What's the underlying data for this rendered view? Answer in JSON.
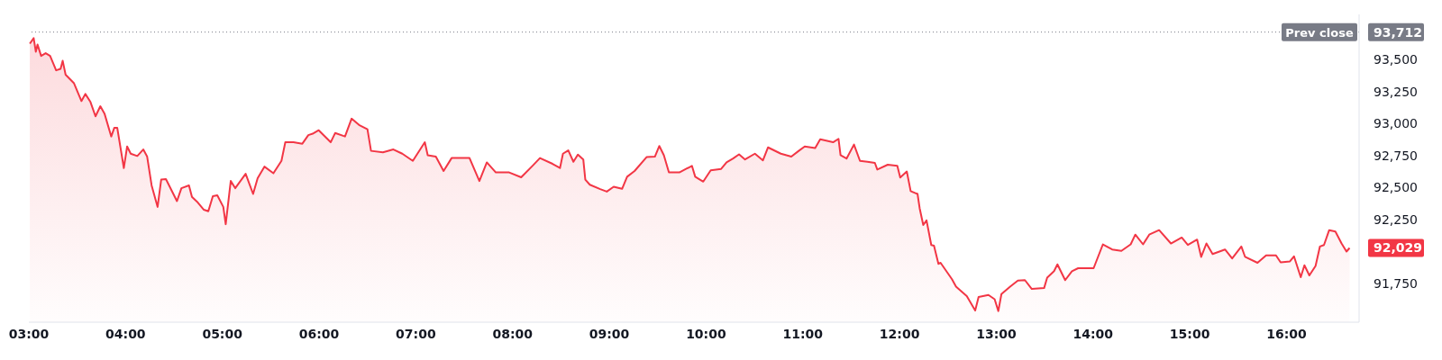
{
  "chart_data": {
    "type": "area",
    "x": [
      3.01,
      3.05,
      3.072,
      3.09,
      3.127,
      3.174,
      3.22,
      3.282,
      3.328,
      3.35,
      3.38,
      3.467,
      3.544,
      3.584,
      3.637,
      3.689,
      3.739,
      3.782,
      3.852,
      3.883,
      3.914,
      3.982,
      4.016,
      4.053,
      4.121,
      4.183,
      4.223,
      4.269,
      4.331,
      4.368,
      4.417,
      4.531,
      4.577,
      4.655,
      4.686,
      4.747,
      4.809,
      4.855,
      4.902,
      4.948,
      5.01,
      5.035,
      5.087,
      5.133,
      5.241,
      5.318,
      5.365,
      5.435,
      5.528,
      5.611,
      5.651,
      5.735,
      5.827,
      5.889,
      5.934,
      5.996,
      6.12,
      6.166,
      6.268,
      6.336,
      6.413,
      6.5,
      6.537,
      6.66,
      6.768,
      6.86,
      6.969,
      7.093,
      7.123,
      7.207,
      7.287,
      7.37,
      7.555,
      7.657,
      7.734,
      7.827,
      7.965,
      8.089,
      8.212,
      8.283,
      8.413,
      8.49,
      8.521,
      8.576,
      8.629,
      8.675,
      8.731,
      8.752,
      8.799,
      8.906,
      8.974,
      9.045,
      9.132,
      9.184,
      9.261,
      9.385,
      9.471,
      9.517,
      9.564,
      9.616,
      9.724,
      9.854,
      9.888,
      9.971,
      10.048,
      10.156,
      10.212,
      10.279,
      10.341,
      10.403,
      10.505,
      10.588,
      10.64,
      10.773,
      10.881,
      10.958,
      11.02,
      11.128,
      11.18,
      11.313,
      11.369,
      11.39,
      11.452,
      11.529,
      11.591,
      11.668,
      11.745,
      11.77,
      11.878,
      11.977,
      12.007,
      12.075,
      12.115,
      12.186,
      12.208,
      12.245,
      12.279,
      12.328,
      12.356,
      12.402,
      12.424,
      12.542,
      12.584,
      12.695,
      12.782,
      12.817,
      12.919,
      12.983,
      13.021,
      13.053,
      13.143,
      13.223,
      13.296,
      13.367,
      13.494,
      13.526,
      13.597,
      13.632,
      13.712,
      13.782,
      13.846,
      14.006,
      14.102,
      14.198,
      14.293,
      14.389,
      14.437,
      14.517,
      14.581,
      14.683,
      14.805,
      14.917,
      14.98,
      15.076,
      15.118,
      15.172,
      15.236,
      15.364,
      15.438,
      15.533,
      15.572,
      15.7,
      15.789,
      15.891,
      15.939,
      16.035,
      16.077,
      16.147,
      16.185,
      16.236,
      16.3,
      16.345,
      16.387,
      16.441,
      16.505,
      16.569,
      16.62,
      16.652
    ],
    "series": [
      {
        "color": "#f23645",
        "values": [
          93622,
          93665,
          93559,
          93615,
          93526,
          93548,
          93526,
          93414,
          93425,
          93488,
          93380,
          93313,
          93174,
          93230,
          93167,
          93055,
          93134,
          93077,
          92898,
          92965,
          92965,
          92652,
          92820,
          92764,
          92746,
          92797,
          92741,
          92517,
          92349,
          92562,
          92566,
          92394,
          92495,
          92517,
          92427,
          92383,
          92327,
          92315,
          92432,
          92439,
          92349,
          92214,
          92551,
          92495,
          92607,
          92450,
          92573,
          92663,
          92611,
          92708,
          92853,
          92853,
          92842,
          92909,
          92920,
          92947,
          92853,
          92925,
          92898,
          93037,
          92988,
          92954,
          92786,
          92775,
          92797,
          92764,
          92708,
          92853,
          92752,
          92741,
          92629,
          92730,
          92730,
          92551,
          92696,
          92618,
          92618,
          92580,
          92674,
          92730,
          92685,
          92652,
          92764,
          92790,
          92701,
          92757,
          92719,
          92562,
          92522,
          92488,
          92468,
          92506,
          92490,
          92584,
          92629,
          92737,
          92741,
          92824,
          92752,
          92618,
          92618,
          92669,
          92584,
          92546,
          92634,
          92645,
          92696,
          92726,
          92759,
          92719,
          92764,
          92712,
          92813,
          92764,
          92741,
          92786,
          92820,
          92808,
          92876,
          92853,
          92880,
          92752,
          92726,
          92835,
          92708,
          92701,
          92692,
          92640,
          92678,
          92670,
          92578,
          92625,
          92472,
          92450,
          92338,
          92208,
          92244,
          92052,
          92046,
          91905,
          91913,
          91785,
          91727,
          91653,
          91541,
          91646,
          91662,
          91629,
          91537,
          91669,
          91727,
          91774,
          91778,
          91709,
          91716,
          91797,
          91848,
          91901,
          91778,
          91848,
          91871,
          91871,
          92057,
          92017,
          92006,
          92057,
          92133,
          92057,
          92133,
          92168,
          92064,
          92110,
          92052,
          92094,
          91959,
          92064,
          91982,
          92017,
          91947,
          92040,
          91959,
          91913,
          91971,
          91971,
          91917,
          91924,
          91964,
          91801,
          91894,
          91815,
          91889,
          92040,
          92052,
          92168,
          92157,
          92064,
          92001,
          92029
        ]
      }
    ],
    "xlim": [
      3,
      16.75
    ],
    "xticks": [
      {
        "value": 3,
        "label": "03:00"
      },
      {
        "value": 4,
        "label": "04:00"
      },
      {
        "value": 5,
        "label": "05:00"
      },
      {
        "value": 6,
        "label": "06:00"
      },
      {
        "value": 7,
        "label": "07:00"
      },
      {
        "value": 8,
        "label": "08:00"
      },
      {
        "value": 9,
        "label": "09:00"
      },
      {
        "value": 10,
        "label": "10:00"
      },
      {
        "value": 11,
        "label": "11:00"
      },
      {
        "value": 12,
        "label": "12:00"
      },
      {
        "value": 13,
        "label": "13:00"
      },
      {
        "value": 14,
        "label": "14:00"
      },
      {
        "value": 15,
        "label": "15:00"
      },
      {
        "value": 16,
        "label": "16:00"
      }
    ],
    "ylim": [
      91450,
      93850
    ],
    "yticks": [
      {
        "value": 91750,
        "label": "91,750"
      },
      {
        "value": 92029,
        "label": "92,029"
      },
      {
        "value": 92250,
        "label": "92,250"
      },
      {
        "value": 92500,
        "label": "92,500"
      },
      {
        "value": 92750,
        "label": "92,750"
      },
      {
        "value": 93000,
        "label": "93,000"
      },
      {
        "value": 93250,
        "label": "93,250"
      },
      {
        "value": 93500,
        "label": "93,500"
      },
      {
        "value": 93712,
        "label": "93,712"
      }
    ],
    "ref_lines": [
      {
        "axis": "y",
        "value": 93712,
        "label": "Prev close",
        "color": "#787b86",
        "line_style": "dotted"
      }
    ],
    "grid": false,
    "legend": false,
    "marker": "none",
    "line_style": "solid"
  }
}
